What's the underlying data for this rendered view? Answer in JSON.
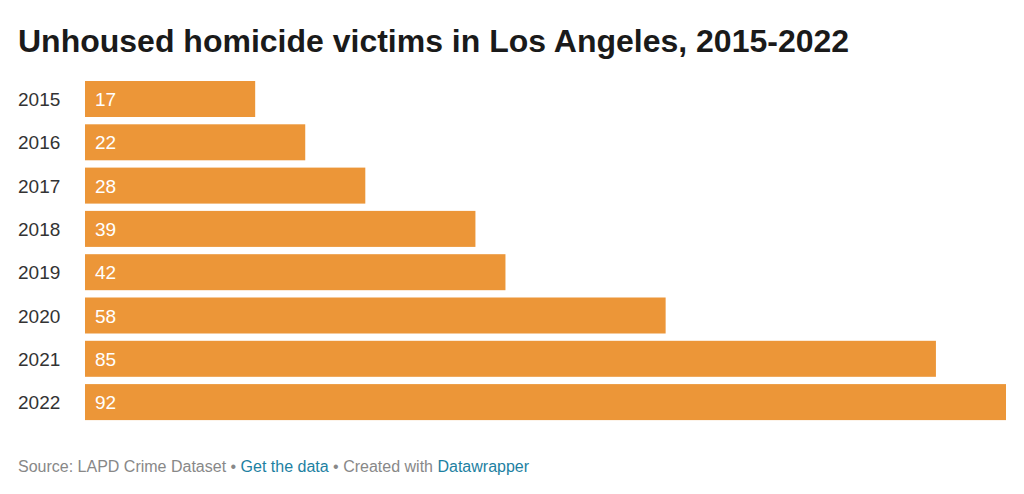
{
  "chart_data": {
    "type": "bar",
    "orientation": "horizontal",
    "title": "Unhoused homicide victims in Los Angeles, 2015-2022",
    "categories": [
      "2015",
      "2016",
      "2017",
      "2018",
      "2019",
      "2020",
      "2021",
      "2022"
    ],
    "values": [
      17,
      22,
      28,
      39,
      42,
      58,
      85,
      92
    ],
    "color": "#ec9638",
    "xlim": [
      0,
      92
    ],
    "grid": false,
    "data_labels": true,
    "tick_labels": "y",
    "footer": [
      "Source: LAPD Crime Dataset",
      "•",
      "Get the data",
      "•",
      "Created with",
      "Datawrapper"
    ]
  }
}
